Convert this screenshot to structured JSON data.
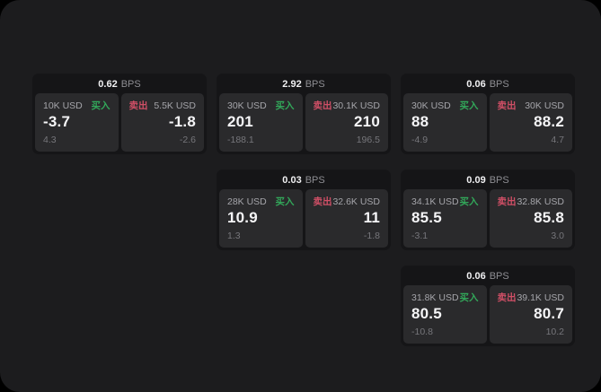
{
  "labels": {
    "bps_unit": "BPS",
    "buy": "买入",
    "sell": "卖出"
  },
  "colors": {
    "page_bg": "#1c1c1e",
    "card_bg": "#151517",
    "tile_bg": "#2a2a2c",
    "buy_green": "#32a85a",
    "sell_red": "#d04f66",
    "text_primary": "#f5f5f7",
    "text_muted": "#8e8e93",
    "text_delta": "#76767b"
  },
  "cards": [
    {
      "bps_value": "0.62",
      "grid_col": 1,
      "grid_row": 1,
      "buy": {
        "amount": "10K USD",
        "price": "-3.7",
        "change": "4.3"
      },
      "sell": {
        "amount": "5.5K USD",
        "price": "-1.8",
        "change": "-2.6"
      }
    },
    {
      "bps_value": "2.92",
      "grid_col": 2,
      "grid_row": 1,
      "buy": {
        "amount": "30K USD",
        "price": "201",
        "change": "-188.1"
      },
      "sell": {
        "amount": "30.1K USD",
        "price": "210",
        "change": "196.5"
      }
    },
    {
      "bps_value": "0.06",
      "grid_col": 3,
      "grid_row": 1,
      "buy": {
        "amount": "30K USD",
        "price": "88",
        "change": "-4.9"
      },
      "sell": {
        "amount": "30K USD",
        "price": "88.2",
        "change": "4.7"
      }
    },
    {
      "bps_value": "0.03",
      "grid_col": 2,
      "grid_row": 2,
      "buy": {
        "amount": "28K USD",
        "price": "10.9",
        "change": "1.3"
      },
      "sell": {
        "amount": "32.6K USD",
        "price": "11",
        "change": "-1.8"
      }
    },
    {
      "bps_value": "0.09",
      "grid_col": 3,
      "grid_row": 2,
      "buy": {
        "amount": "34.1K USD",
        "price": "85.5",
        "change": "-3.1"
      },
      "sell": {
        "amount": "32.8K USD",
        "price": "85.8",
        "change": "3.0"
      }
    },
    {
      "bps_value": "0.06",
      "grid_col": 3,
      "grid_row": 3,
      "buy": {
        "amount": "31.8K USD",
        "price": "80.5",
        "change": "-10.8"
      },
      "sell": {
        "amount": "39.1K USD",
        "price": "80.7",
        "change": "10.2"
      }
    }
  ]
}
